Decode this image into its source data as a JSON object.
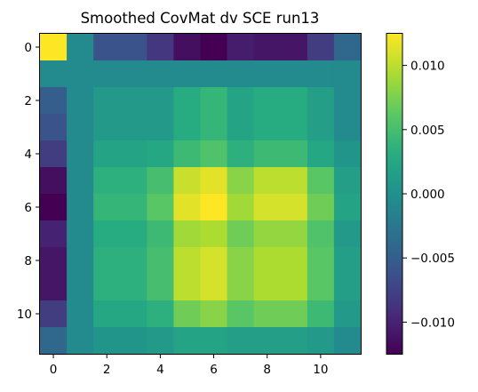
{
  "chart_data": {
    "type": "heatmap",
    "title": "Smoothed CovMat dv SCE run13",
    "rows": 12,
    "cols": 12,
    "x_ticks": [
      0,
      2,
      4,
      6,
      8,
      10
    ],
    "y_ticks": [
      0,
      2,
      4,
      6,
      8,
      10
    ],
    "colorbar": {
      "vmin": -0.0125,
      "vmax": 0.0125,
      "ticks": [
        0.01,
        0.005,
        0.0,
        -0.005,
        -0.01
      ],
      "tick_labels": [
        "0.010",
        "0.005",
        "0.000",
        "−0.005",
        "−0.010"
      ]
    },
    "colormap": "viridis",
    "values": [
      [
        0.0125,
        -0.0005,
        -0.006,
        -0.006,
        -0.0085,
        -0.0115,
        -0.0125,
        -0.0105,
        -0.011,
        -0.011,
        -0.008,
        -0.004
      ],
      [
        -0.0005,
        -0.0005,
        -0.0005,
        -0.0005,
        -0.0005,
        -0.0005,
        -0.0005,
        -0.0005,
        -0.0005,
        -0.0005,
        -0.0005,
        -0.0005
      ],
      [
        -0.005,
        -0.0005,
        0.001,
        0.001,
        0.001,
        0.003,
        0.004,
        0.002,
        0.003,
        0.003,
        0.0015,
        -0.0005
      ],
      [
        -0.006,
        -0.0005,
        0.001,
        0.001,
        0.001,
        0.003,
        0.004,
        0.002,
        0.003,
        0.003,
        0.0015,
        -0.0005
      ],
      [
        -0.008,
        -0.0005,
        0.002,
        0.002,
        0.0025,
        0.0045,
        0.0055,
        0.0035,
        0.0045,
        0.0045,
        0.0025,
        0.0005
      ],
      [
        -0.0115,
        -0.0005,
        0.0035,
        0.0035,
        0.005,
        0.0105,
        0.0115,
        0.008,
        0.01,
        0.01,
        0.006,
        0.0015
      ],
      [
        -0.0125,
        -0.0005,
        0.004,
        0.004,
        0.006,
        0.0115,
        0.0125,
        0.009,
        0.011,
        0.011,
        0.007,
        0.002
      ],
      [
        -0.01,
        -0.0005,
        0.003,
        0.003,
        0.0045,
        0.009,
        0.0095,
        0.007,
        0.0085,
        0.0085,
        0.0055,
        0.001
      ],
      [
        -0.011,
        -0.0005,
        0.0035,
        0.0035,
        0.005,
        0.01,
        0.011,
        0.008,
        0.0095,
        0.0095,
        0.006,
        0.0015
      ],
      [
        -0.011,
        -0.0005,
        0.0035,
        0.0035,
        0.005,
        0.01,
        0.011,
        0.008,
        0.0095,
        0.0095,
        0.006,
        0.0015
      ],
      [
        -0.008,
        -0.0005,
        0.0025,
        0.0025,
        0.0035,
        0.007,
        0.008,
        0.006,
        0.007,
        0.007,
        0.0045,
        0.001
      ],
      [
        -0.004,
        -0.0005,
        0.0005,
        0.0005,
        0.001,
        0.002,
        0.002,
        0.0015,
        0.0015,
        0.0015,
        0.001,
        -0.0005
      ]
    ]
  }
}
